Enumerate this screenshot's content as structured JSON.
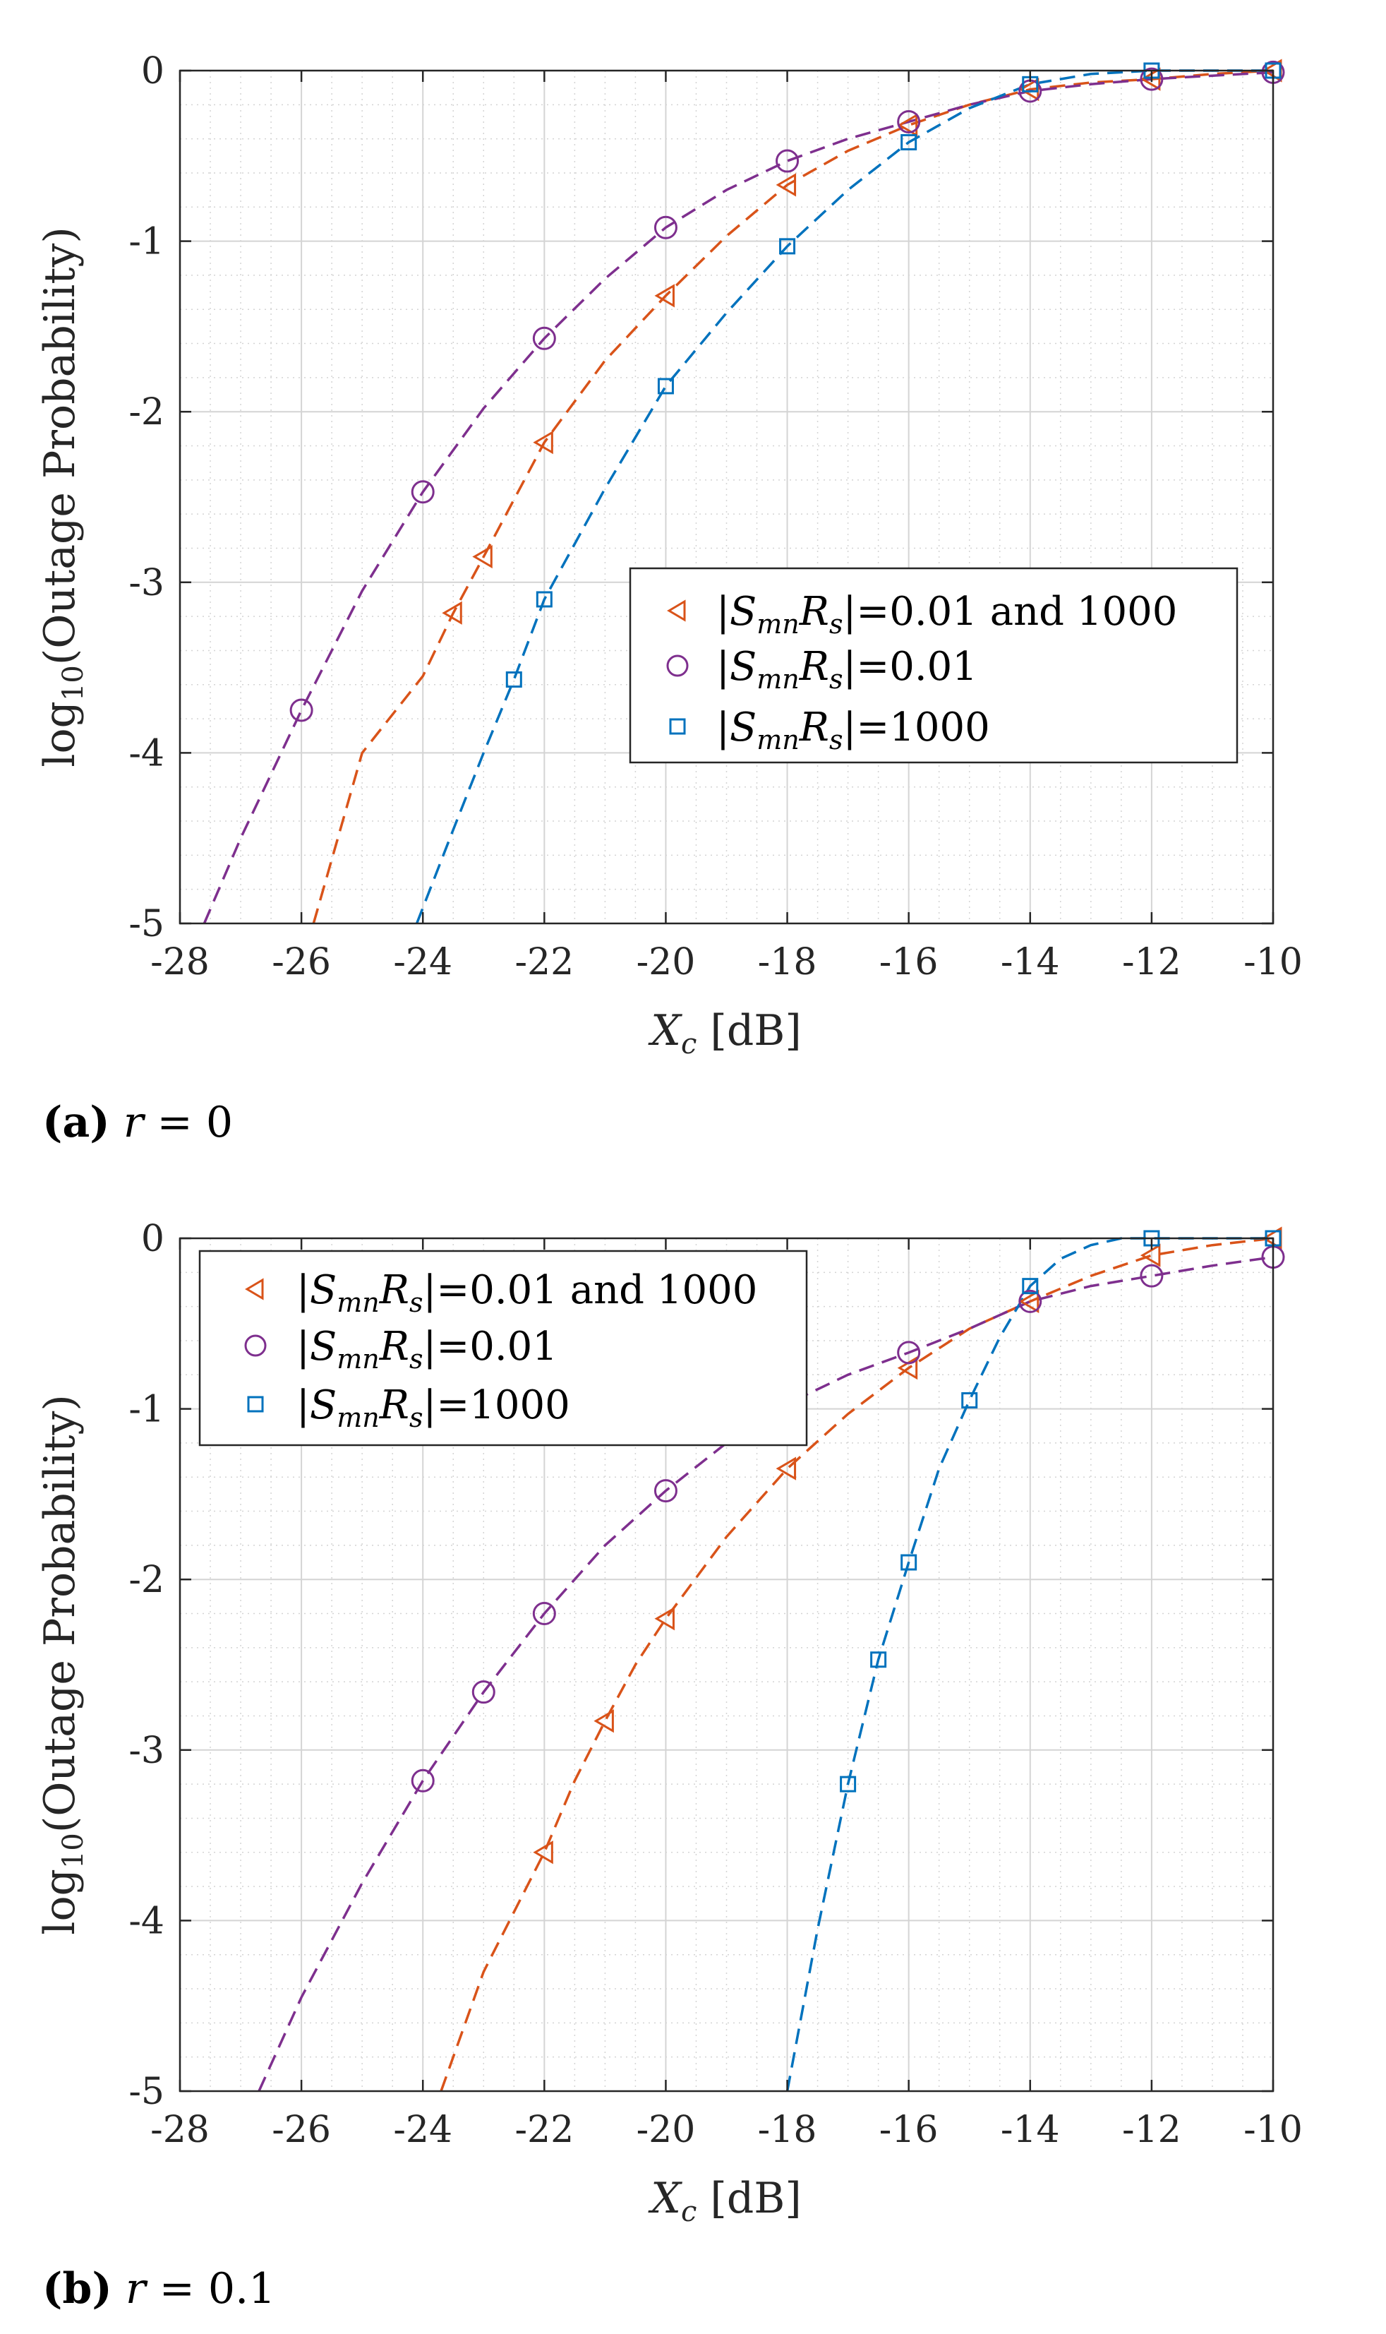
{
  "colors": {
    "red": "#D95319",
    "purple": "#7E2F8E",
    "blue": "#0072BD",
    "grid": "#d4d4d4",
    "axis": "#262626"
  },
  "chart_data": [
    {
      "type": "line",
      "caption_label": "(a)",
      "caption_text": "r = 0",
      "xlabel": "X_c [dB]",
      "ylabel": "log10(Outage Probability)",
      "xlim": [
        -28,
        -10
      ],
      "ylim": [
        -5,
        0
      ],
      "xticks": [
        -28,
        -26,
        -24,
        -22,
        -20,
        -18,
        -16,
        -14,
        -12,
        -10
      ],
      "yticks": [
        0,
        -1,
        -2,
        -3,
        -4,
        -5
      ],
      "grid": true,
      "minor_grid": true,
      "legend_position": "center-right",
      "series": [
        {
          "name": "|S_mn R_s|=0.01 and 1000",
          "marker": "triangle-left",
          "color_key": "red",
          "points_x": [
            -23.5,
            -23,
            -22,
            -20,
            -18,
            -16,
            -14,
            -12,
            -10
          ],
          "points_y": [
            -3.18,
            -2.85,
            -2.18,
            -1.32,
            -0.67,
            -0.32,
            -0.11,
            -0.05,
            0.0
          ],
          "curve_x": [
            -25.8,
            -25,
            -24,
            -23.5,
            -23,
            -22,
            -21,
            -20,
            -19,
            -18,
            -17,
            -16,
            -15,
            -14,
            -13,
            -12,
            -11,
            -10
          ],
          "curve_y": [
            -5.0,
            -4.0,
            -3.55,
            -3.18,
            -2.85,
            -2.18,
            -1.7,
            -1.32,
            -0.97,
            -0.67,
            -0.47,
            -0.32,
            -0.2,
            -0.11,
            -0.07,
            -0.05,
            -0.02,
            0.0
          ]
        },
        {
          "name": "|S_mn R_s|=0.01",
          "marker": "circle",
          "color_key": "purple",
          "points_x": [
            -26,
            -24,
            -22,
            -20,
            -18,
            -16,
            -14,
            -12,
            -10
          ],
          "points_y": [
            -3.75,
            -2.47,
            -1.57,
            -0.92,
            -0.53,
            -0.3,
            -0.12,
            -0.05,
            -0.01
          ],
          "curve_x": [
            -27.6,
            -27,
            -26,
            -25,
            -24,
            -23,
            -22,
            -21,
            -20,
            -19,
            -18,
            -17,
            -16,
            -15,
            -14,
            -13,
            -12,
            -11,
            -10
          ],
          "curve_y": [
            -5.0,
            -4.5,
            -3.75,
            -3.05,
            -2.47,
            -1.98,
            -1.57,
            -1.22,
            -0.92,
            -0.7,
            -0.53,
            -0.4,
            -0.3,
            -0.2,
            -0.12,
            -0.08,
            -0.05,
            -0.03,
            -0.01
          ]
        },
        {
          "name": "|S_mn R_s|=1000",
          "marker": "square",
          "color_key": "blue",
          "points_x": [
            -22.5,
            -22,
            -20,
            -18,
            -16,
            -14,
            -12,
            -10
          ],
          "points_y": [
            -3.57,
            -3.1,
            -1.85,
            -1.03,
            -0.42,
            -0.08,
            0.0,
            0.0
          ],
          "curve_x": [
            -24.1,
            -23.5,
            -23,
            -22.5,
            -22,
            -21,
            -20,
            -19,
            -18,
            -17,
            -16,
            -15,
            -14,
            -13,
            -12,
            -11,
            -10
          ],
          "curve_y": [
            -5.0,
            -4.45,
            -4.0,
            -3.57,
            -3.1,
            -2.45,
            -1.85,
            -1.42,
            -1.03,
            -0.7,
            -0.42,
            -0.22,
            -0.08,
            -0.02,
            0.0,
            0.0,
            0.0
          ]
        }
      ]
    },
    {
      "type": "line",
      "caption_label": "(b)",
      "caption_text": "r = 0.1",
      "xlabel": "X_c [dB]",
      "ylabel": "log10(Outage Probability)",
      "xlim": [
        -28,
        -10
      ],
      "ylim": [
        -5,
        0
      ],
      "xticks": [
        -28,
        -26,
        -24,
        -22,
        -20,
        -18,
        -16,
        -14,
        -12,
        -10
      ],
      "yticks": [
        0,
        -1,
        -2,
        -3,
        -4,
        -5
      ],
      "grid": true,
      "minor_grid": true,
      "legend_position": "top-left",
      "series": [
        {
          "name": "|S_mn R_s|=0.01 and 1000",
          "marker": "triangle-left",
          "color_key": "red",
          "points_x": [
            -22,
            -21,
            -20,
            -18,
            -16,
            -14,
            -12,
            -10
          ],
          "points_y": [
            -3.6,
            -2.83,
            -2.23,
            -1.35,
            -0.76,
            -0.37,
            -0.1,
            0.0
          ],
          "curve_x": [
            -23.7,
            -23,
            -22.5,
            -22,
            -21.5,
            -21,
            -20.5,
            -20,
            -19,
            -18,
            -17,
            -16,
            -15,
            -14,
            -13,
            -12,
            -11,
            -10
          ],
          "curve_y": [
            -5.0,
            -4.3,
            -3.95,
            -3.6,
            -3.18,
            -2.83,
            -2.5,
            -2.23,
            -1.75,
            -1.35,
            -1.03,
            -0.76,
            -0.53,
            -0.37,
            -0.22,
            -0.1,
            -0.04,
            0.0
          ]
        },
        {
          "name": "|S_mn R_s|=0.01",
          "marker": "circle",
          "color_key": "purple",
          "points_x": [
            -24,
            -23,
            -22,
            -20,
            -16,
            -14,
            -12,
            -10
          ],
          "points_y": [
            -3.18,
            -2.66,
            -2.2,
            -1.48,
            -0.67,
            -0.37,
            -0.22,
            -0.11
          ],
          "curve_x": [
            -26.7,
            -26,
            -25,
            -24,
            -23,
            -22,
            -21,
            -20,
            -19,
            -18,
            -17,
            -16,
            -15,
            -14,
            -13,
            -12,
            -11,
            -10
          ],
          "curve_y": [
            -5.0,
            -4.45,
            -3.78,
            -3.18,
            -2.66,
            -2.2,
            -1.8,
            -1.48,
            -1.2,
            -0.97,
            -0.8,
            -0.67,
            -0.53,
            -0.37,
            -0.28,
            -0.22,
            -0.16,
            -0.11
          ]
        },
        {
          "name": "|S_mn R_s|=1000",
          "marker": "square",
          "color_key": "blue",
          "points_x": [
            -17,
            -16.5,
            -16,
            -15,
            -14,
            -12,
            -10
          ],
          "points_y": [
            -3.2,
            -2.47,
            -1.9,
            -0.95,
            -0.28,
            0.0,
            0.0
          ],
          "curve_x": [
            -18.0,
            -17.5,
            -17,
            -16.5,
            -16,
            -15.5,
            -15,
            -14.5,
            -14,
            -13.5,
            -13,
            -12.5,
            -12,
            -11,
            -10
          ],
          "curve_y": [
            -5.0,
            -4.05,
            -3.2,
            -2.47,
            -1.9,
            -1.35,
            -0.95,
            -0.58,
            -0.28,
            -0.12,
            -0.04,
            0.0,
            0.0,
            0.0,
            0.0
          ]
        }
      ]
    }
  ]
}
